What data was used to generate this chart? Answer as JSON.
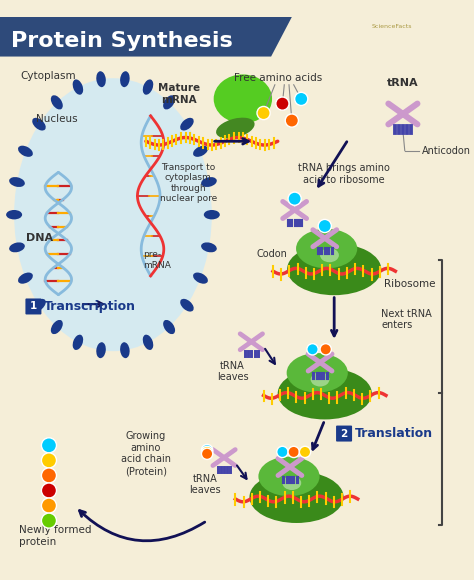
{
  "title": "Protein Synthesis",
  "title_bg_color": "#2e4a7a",
  "title_text_color": "white",
  "bg_color": "#f5eed8",
  "cytoplasm_label": "Cytoplasm",
  "nucleus_label": "Nucleus",
  "dna_label": "DNA",
  "premrna_label": "pre-\nmRNA",
  "mature_mrna_label": "Mature\nmRNA",
  "transport_label": "Transport to\ncytoplasm\nthrough\nnuclear pore",
  "codon_label": "Codon",
  "ribosome_label": "Ribosome",
  "free_amino_label": "Free amino acids",
  "trna_label": "tRNA",
  "anticodon_label": "Anticodon",
  "trna_brings_label": "tRNA brings amino\nacid to ribosome",
  "next_trna_label": "Next tRNA\nenters",
  "trna_leaves_label1": "tRNA\nleaves",
  "trna_leaves_label2": "tRNA\nleaves",
  "growing_chain_label": "Growing\namino\nacid chain\n(Protein)",
  "newly_formed_label": "Newly formed\nprotein",
  "transcription_label": "Transcription",
  "translation_label": "Translation",
  "nucleus_fill": "#d0eaf5",
  "nucleus_border": "#1a3a8a",
  "ribosome_dark": "#3a8a1a",
  "ribosome_light": "#5ab83a",
  "ribosome_bright": "#88cc44",
  "mrna_color": "#ee3333",
  "mrna_tick_color": "#ffcc00",
  "dna_strand_color": "#88bbdd",
  "dna_rung1": "#cc2222",
  "dna_rung2": "#ffaa00",
  "trna_color": "#cc99cc",
  "anticodon_color": "#4444aa",
  "amino_colors": [
    "#00ccff",
    "#ffcc00",
    "#ff6600",
    "#cc0000",
    "#ff9900",
    "#66cc00"
  ],
  "arrow_color": "#111155",
  "badge_color": "#1a3a8a",
  "bracket_color": "#444444",
  "green_blob_color": "#55cc22",
  "green_slug_color": "#448822"
}
